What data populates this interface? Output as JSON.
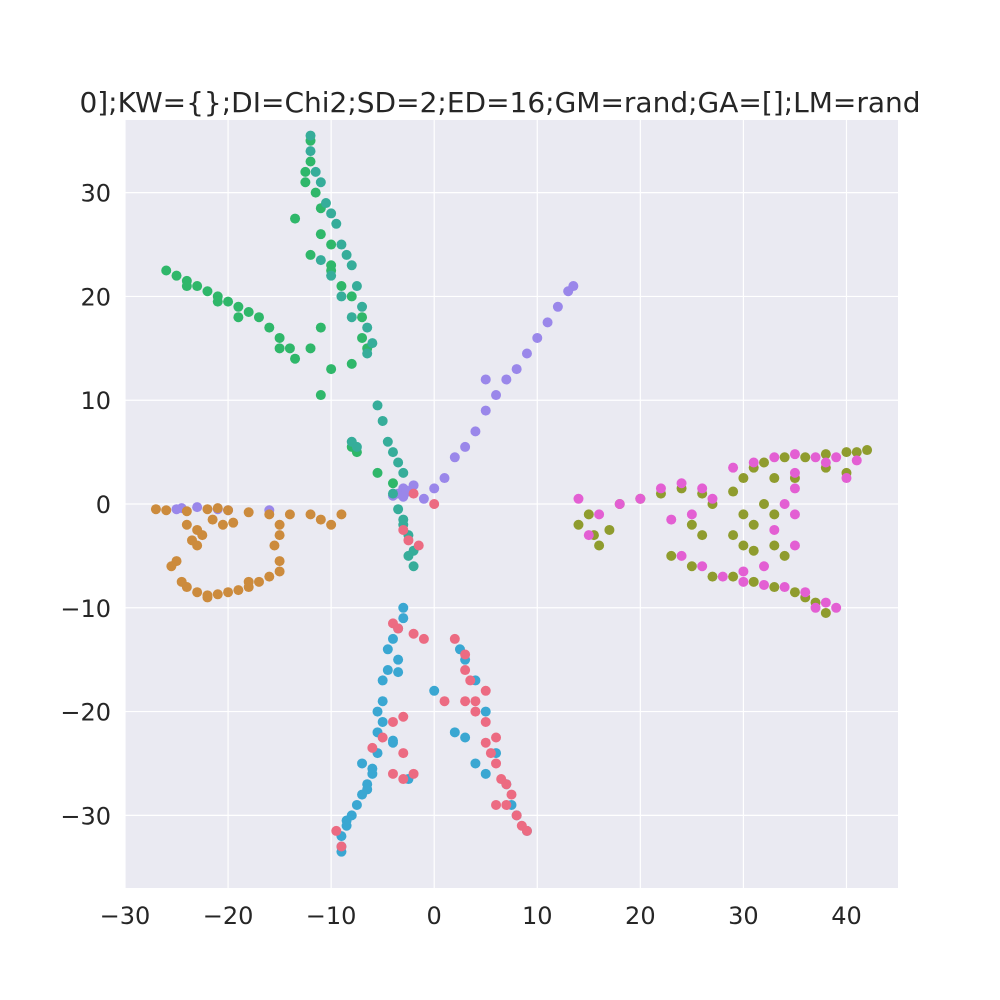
{
  "chart_data": {
    "type": "scatter",
    "title": "0];KW={};DI=Chi2;SD=2;ED=16;GM=rand;GA=[];LM=rand",
    "xlabel": "",
    "ylabel": "",
    "xlim": [
      -30,
      45
    ],
    "ylim": [
      -37,
      37
    ],
    "xticks": [
      -30,
      -20,
      -10,
      0,
      10,
      20,
      30,
      40
    ],
    "yticks": [
      -30,
      -20,
      -10,
      0,
      10,
      20,
      30
    ],
    "x_tick_labels": [
      "−30",
      "−20",
      "−10",
      "0",
      "10",
      "20",
      "30",
      "40"
    ],
    "y_tick_labels": [
      "−30",
      "−20",
      "−10",
      "0",
      "10",
      "20",
      "30"
    ],
    "grid": true,
    "background": "#eaeaf2",
    "series": [
      {
        "color": "#9a87ea",
        "points": [
          [
            -1,
            0.5
          ],
          [
            0,
            1.5
          ],
          [
            1,
            2.5
          ],
          [
            2,
            4.5
          ],
          [
            3,
            5.5
          ],
          [
            4,
            7
          ],
          [
            5,
            9
          ],
          [
            6,
            10.5
          ],
          [
            7,
            12
          ],
          [
            8,
            13
          ],
          [
            9,
            14.5
          ],
          [
            10,
            16
          ],
          [
            11,
            17.5
          ],
          [
            12,
            19
          ],
          [
            13,
            20.5
          ],
          [
            13.5,
            21
          ],
          [
            5,
            12
          ],
          [
            -2,
            1.8
          ],
          [
            -3,
            1.5
          ],
          [
            -3.5,
            1
          ],
          [
            -2.5,
            1.2
          ],
          [
            -4,
            0.8
          ],
          [
            -21,
            -0.5
          ],
          [
            -23,
            -0.3
          ],
          [
            -24.5,
            -0.4
          ],
          [
            -25,
            -0.5
          ],
          [
            -16,
            -0.6
          ],
          [
            -20,
            -0.6
          ],
          [
            -3,
            0.7
          ],
          [
            -2.7,
            1.3
          ]
        ]
      },
      {
        "color": "#2fb76a",
        "points": [
          [
            -26,
            22.5
          ],
          [
            -25,
            22
          ],
          [
            -24,
            21.5
          ],
          [
            -23,
            21
          ],
          [
            -22,
            20.5
          ],
          [
            -21,
            20
          ],
          [
            -20,
            19.5
          ],
          [
            -19,
            19
          ],
          [
            -18,
            18.5
          ],
          [
            -17,
            18
          ],
          [
            -16,
            17
          ],
          [
            -15,
            16
          ],
          [
            -14,
            15
          ],
          [
            -13.5,
            14
          ],
          [
            -19,
            18
          ],
          [
            -21,
            19.5
          ],
          [
            -24,
            21
          ],
          [
            -15,
            15
          ],
          [
            -12,
            35
          ],
          [
            -12,
            33
          ],
          [
            -12.5,
            31
          ],
          [
            -11.5,
            30
          ],
          [
            -11,
            28.5
          ],
          [
            -11,
            26
          ],
          [
            -10,
            25
          ],
          [
            -10,
            23
          ],
          [
            -9,
            21
          ],
          [
            -8,
            20
          ],
          [
            -7,
            18
          ],
          [
            -7,
            16
          ],
          [
            -6.5,
            15
          ],
          [
            -11,
            17
          ],
          [
            -12,
            15
          ],
          [
            -10,
            13
          ],
          [
            -8,
            13.5
          ],
          [
            -11,
            10.5
          ],
          [
            -13.5,
            27.5
          ],
          [
            -12,
            24
          ],
          [
            -10,
            22.5
          ],
          [
            -8,
            5.5
          ],
          [
            -7.5,
            5
          ],
          [
            -5.5,
            3
          ],
          [
            -4,
            2
          ],
          [
            -12.5,
            32
          ]
        ]
      },
      {
        "color": "#36ad9a",
        "points": [
          [
            -12,
            34
          ],
          [
            -11.5,
            32
          ],
          [
            -11,
            31
          ],
          [
            -10.5,
            29
          ],
          [
            -10,
            28
          ],
          [
            -9.5,
            27
          ],
          [
            -9,
            25
          ],
          [
            -8.5,
            24
          ],
          [
            -8,
            23
          ],
          [
            -7.5,
            21
          ],
          [
            -7,
            19
          ],
          [
            -6.5,
            17
          ],
          [
            -6,
            15.5
          ],
          [
            -6.5,
            14.5
          ],
          [
            -11,
            23.5
          ],
          [
            -10,
            22
          ],
          [
            -9,
            20
          ],
          [
            -8,
            18
          ],
          [
            -12,
            35.5
          ],
          [
            -8,
            6
          ],
          [
            -7.5,
            5.5
          ],
          [
            -5.5,
            9.5
          ],
          [
            -5,
            8
          ],
          [
            -4.5,
            6
          ],
          [
            -4,
            5
          ],
          [
            -3.5,
            4
          ],
          [
            -3,
            3
          ],
          [
            -4,
            1
          ],
          [
            -3.5,
            -0.5
          ],
          [
            -3,
            -1.5
          ],
          [
            -2.5,
            -3
          ],
          [
            -2,
            -4.5
          ],
          [
            -2,
            -6
          ],
          [
            -2.5,
            -5
          ],
          [
            -3,
            -2
          ]
        ]
      },
      {
        "color": "#cc8b3d",
        "points": [
          [
            -27,
            -0.5
          ],
          [
            -26,
            -0.6
          ],
          [
            -24,
            -0.7
          ],
          [
            -22,
            -0.5
          ],
          [
            -21,
            -0.4
          ],
          [
            -20,
            -0.6
          ],
          [
            -18,
            -0.8
          ],
          [
            -16,
            -1
          ],
          [
            -14,
            -1
          ],
          [
            -12,
            -1
          ],
          [
            -11,
            -1.5
          ],
          [
            -10,
            -2
          ],
          [
            -9,
            -1
          ],
          [
            -25,
            -5.5
          ],
          [
            -25.5,
            -6
          ],
          [
            -24.5,
            -7.5
          ],
          [
            -24,
            -8
          ],
          [
            -23,
            -8.5
          ],
          [
            -22,
            -9
          ],
          [
            -21,
            -8.7
          ],
          [
            -20,
            -8.5
          ],
          [
            -19,
            -8.3
          ],
          [
            -18,
            -8
          ],
          [
            -17,
            -7.5
          ],
          [
            -16,
            -7
          ],
          [
            -15,
            -6.5
          ],
          [
            -15,
            -5.5
          ],
          [
            -15.5,
            -4
          ],
          [
            -15,
            -3
          ],
          [
            -15,
            -2
          ],
          [
            -22.5,
            -3
          ],
          [
            -23,
            -2.5
          ],
          [
            -24,
            -2
          ],
          [
            -20.5,
            -2
          ],
          [
            -21.5,
            -1.5
          ],
          [
            -23,
            -4
          ],
          [
            -22,
            -8.8
          ],
          [
            -18,
            -7.5
          ],
          [
            -23.5,
            -3.5
          ],
          [
            -19.5,
            -1.8
          ]
        ]
      },
      {
        "color": "#8f9c2e",
        "points": [
          [
            14,
            -2
          ],
          [
            15,
            -1
          ],
          [
            15.5,
            -3
          ],
          [
            16,
            -4
          ],
          [
            17,
            -2.5
          ],
          [
            18,
            0
          ],
          [
            20,
            0.5
          ],
          [
            22,
            1
          ],
          [
            24,
            1.5
          ],
          [
            26,
            1
          ],
          [
            27,
            0
          ],
          [
            25,
            -2
          ],
          [
            26,
            -3
          ],
          [
            23,
            -5
          ],
          [
            25,
            -6
          ],
          [
            27,
            -7
          ],
          [
            29,
            -7
          ],
          [
            31,
            -7.5
          ],
          [
            33,
            -8
          ],
          [
            35,
            -8.5
          ],
          [
            36,
            -9
          ],
          [
            37,
            -9.5
          ],
          [
            38,
            -10.5
          ],
          [
            30,
            -4
          ],
          [
            31,
            -4.5
          ],
          [
            29,
            -3
          ],
          [
            31,
            -2
          ],
          [
            33,
            -4
          ],
          [
            34,
            -5
          ],
          [
            30,
            2.5
          ],
          [
            31,
            3.5
          ],
          [
            32,
            4
          ],
          [
            34,
            4.5
          ],
          [
            36,
            4.5
          ],
          [
            38,
            4.8
          ],
          [
            40,
            5
          ],
          [
            41,
            5
          ],
          [
            42,
            5.2
          ],
          [
            40,
            3
          ],
          [
            38,
            3.5
          ],
          [
            35,
            2.5
          ],
          [
            33,
            2.5
          ],
          [
            32,
            0
          ],
          [
            33,
            -1
          ],
          [
            30,
            -1
          ],
          [
            29,
            1.2
          ]
        ]
      },
      {
        "color": "#e35fd3",
        "points": [
          [
            14,
            0.5
          ],
          [
            16,
            -1
          ],
          [
            18,
            0
          ],
          [
            20,
            0.5
          ],
          [
            22,
            1.5
          ],
          [
            24,
            2
          ],
          [
            26,
            1.5
          ],
          [
            27,
            0.5
          ],
          [
            25,
            -1
          ],
          [
            23,
            -1.5
          ],
          [
            24,
            -5
          ],
          [
            26,
            -6
          ],
          [
            28,
            -7
          ],
          [
            30,
            -7.5
          ],
          [
            32,
            -7.8
          ],
          [
            34,
            -8
          ],
          [
            36,
            -8.5
          ],
          [
            38,
            -9.5
          ],
          [
            39,
            -10
          ],
          [
            37,
            -10
          ],
          [
            29,
            3.5
          ],
          [
            31,
            4
          ],
          [
            33,
            4.5
          ],
          [
            35,
            4.8
          ],
          [
            37,
            4.5
          ],
          [
            39,
            4.5
          ],
          [
            41,
            4.2
          ],
          [
            40,
            2.5
          ],
          [
            38,
            4
          ],
          [
            35,
            1.5
          ],
          [
            34,
            0
          ],
          [
            35,
            -1
          ],
          [
            33,
            -2.5
          ],
          [
            35,
            -4
          ],
          [
            30,
            -6.5
          ],
          [
            32,
            -6
          ],
          [
            15,
            -3
          ],
          [
            35,
            3
          ]
        ]
      },
      {
        "color": "#3aa7d2",
        "points": [
          [
            -9,
            -33
          ],
          [
            -9,
            -32
          ],
          [
            -8.5,
            -31
          ],
          [
            -8,
            -30
          ],
          [
            -7.5,
            -29
          ],
          [
            -7,
            -28
          ],
          [
            -6.5,
            -27
          ],
          [
            -6,
            -25.5
          ],
          [
            -5.5,
            -24
          ],
          [
            -5.5,
            -22
          ],
          [
            -5.5,
            -20
          ],
          [
            -5,
            -19
          ],
          [
            -5,
            -17
          ],
          [
            -4.5,
            -16
          ],
          [
            -4.5,
            -14
          ],
          [
            -4,
            -13
          ],
          [
            -3.5,
            -12
          ],
          [
            -3,
            -11
          ],
          [
            -3,
            -10
          ],
          [
            -6,
            -26
          ],
          [
            -7,
            -25
          ],
          [
            -5,
            -21
          ],
          [
            -4,
            -23
          ],
          [
            -3.5,
            -15
          ],
          [
            -6.5,
            -27.5
          ],
          [
            -8.5,
            -30.5
          ],
          [
            -9,
            -33.5
          ],
          [
            -4,
            -22.8
          ],
          [
            0,
            -18
          ],
          [
            2,
            -22
          ],
          [
            3,
            -22.5
          ],
          [
            4,
            -25
          ],
          [
            5,
            -26
          ],
          [
            6,
            -24
          ],
          [
            7,
            -27
          ],
          [
            7.5,
            -29
          ],
          [
            8,
            -30
          ],
          [
            9,
            -31.5
          ],
          [
            5,
            -20
          ],
          [
            4,
            -17
          ],
          [
            3,
            -15
          ],
          [
            2.5,
            -14
          ],
          [
            -3.5,
            -16.2
          ],
          [
            -2.5,
            -26.5
          ]
        ]
      },
      {
        "color": "#ec6b82",
        "points": [
          [
            -9.5,
            -31.5
          ],
          [
            -9,
            -33
          ],
          [
            -4,
            -26
          ],
          [
            -3,
            -26.5
          ],
          [
            -2,
            -26
          ],
          [
            -3,
            -24
          ],
          [
            -4,
            -21
          ],
          [
            -3,
            -20.5
          ],
          [
            -5,
            -22.5
          ],
          [
            -6,
            -23.5
          ],
          [
            -4,
            -11.5
          ],
          [
            -3.5,
            -12
          ],
          [
            -1,
            -13
          ],
          [
            -2,
            -12.5
          ],
          [
            1,
            -19
          ],
          [
            3,
            -19
          ],
          [
            4,
            -20
          ],
          [
            5,
            -21
          ],
          [
            6,
            -22.5
          ],
          [
            5,
            -23
          ],
          [
            5.5,
            -24
          ],
          [
            6,
            -25
          ],
          [
            6.5,
            -26.5
          ],
          [
            7,
            -27
          ],
          [
            7.5,
            -28
          ],
          [
            7,
            -29
          ],
          [
            8,
            -30
          ],
          [
            8.5,
            -31
          ],
          [
            9,
            -31.5
          ],
          [
            4,
            -19
          ],
          [
            3.5,
            -17
          ],
          [
            3,
            -16
          ],
          [
            2,
            -13
          ],
          [
            3,
            -14.5
          ],
          [
            5,
            -18
          ],
          [
            6,
            -29
          ],
          [
            -2,
            1
          ],
          [
            0,
            0
          ],
          [
            -3,
            -2.5
          ],
          [
            -2.5,
            -3.5
          ],
          [
            -1.5,
            -4
          ]
        ]
      }
    ]
  }
}
